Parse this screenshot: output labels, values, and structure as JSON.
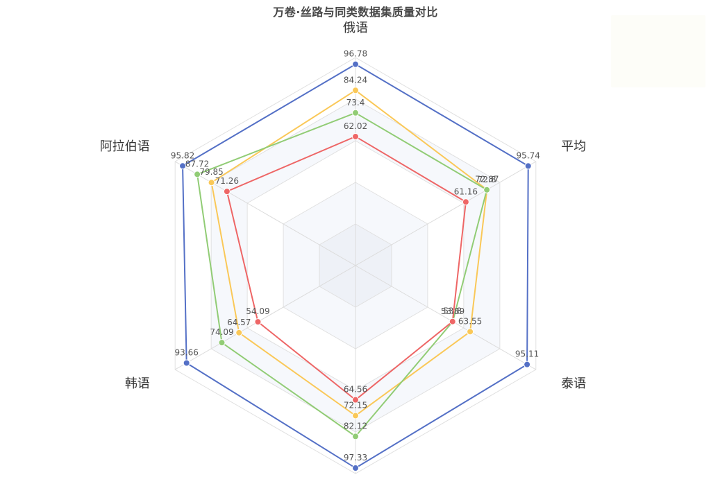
{
  "chart_data": {
    "type": "radar",
    "title": "万卷·丝路与同类数据集质量对比",
    "indicators": [
      "俄语",
      "平均",
      "泰语",
      "",
      "韩语",
      "阿拉伯语"
    ],
    "max": 100,
    "series": [
      {
        "color": "#5470c6",
        "values": [
          96.78,
          95.74,
          95.11,
          97.33,
          93.66,
          95.82
        ]
      },
      {
        "color": "#fac858",
        "values": [
          84.24,
          72.87,
          63.55,
          72.15,
          64.57,
          79.85
        ]
      },
      {
        "color": "#91cc75",
        "values": [
          73.4,
          72.8,
          53.89,
          82.12,
          74.09,
          87.72
        ]
      },
      {
        "color": "#ee6666",
        "values": [
          62.02,
          61.16,
          53.8,
          64.56,
          54.09,
          71.26
        ]
      }
    ]
  }
}
